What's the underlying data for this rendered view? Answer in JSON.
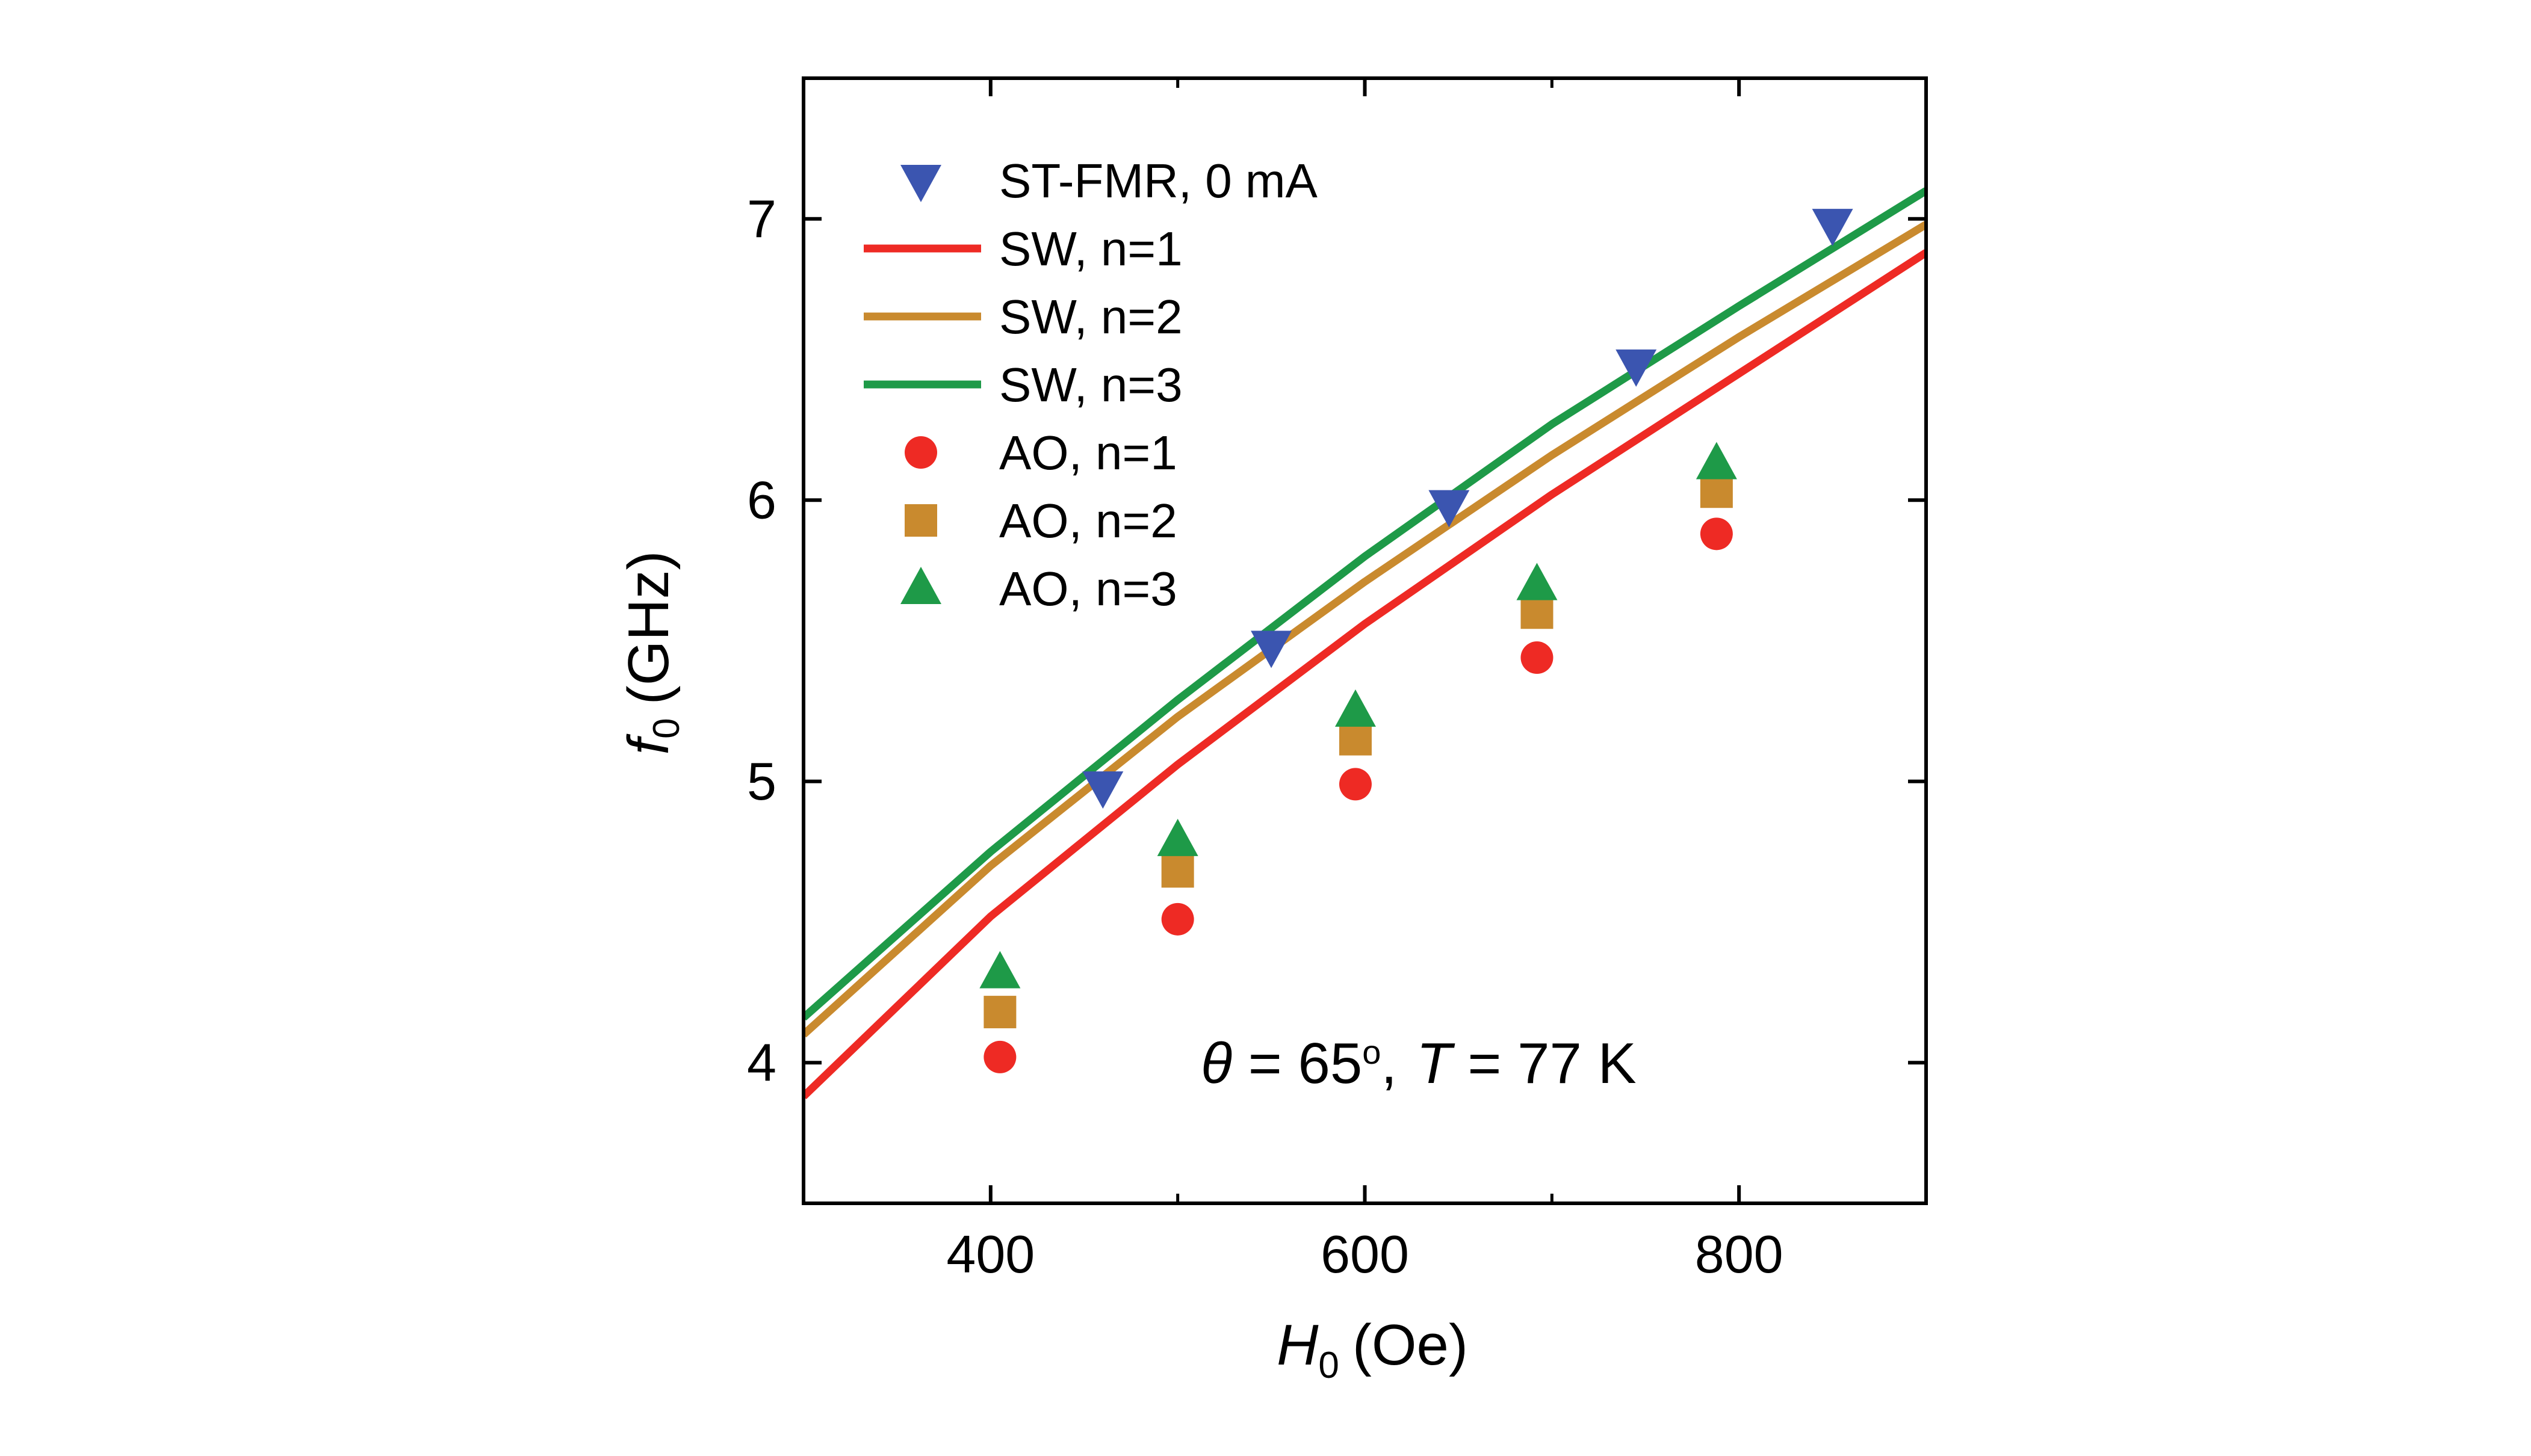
{
  "chart_data": {
    "type": "line",
    "xlabel": {
      "symbol": "H",
      "subscript": "0",
      "unit": "(Oe)"
    },
    "ylabel": {
      "symbol": "f",
      "subscript": "0",
      "unit": "(GHz)"
    },
    "xlim": [
      300,
      900
    ],
    "ylim": [
      3.5,
      7.5
    ],
    "xticks": [
      400,
      600,
      800
    ],
    "xminor": [
      500,
      700
    ],
    "yticks": [
      4,
      5,
      6,
      7
    ],
    "grid": false,
    "legend_position": "top-left",
    "annotation": {
      "theta_symbol": "θ",
      "theta_text": " = 65",
      "degree": "o",
      "sep": ",",
      "t_symbol": "T",
      "t_text": " = 77 K"
    },
    "series": [
      {
        "name": "ST-FMR, 0 mA",
        "kind": "marker",
        "marker": "triangle-down",
        "color": "#3b55b0",
        "x": [
          460,
          550,
          645,
          745,
          850
        ],
        "y": [
          4.98,
          5.48,
          5.98,
          6.48,
          6.98
        ]
      },
      {
        "name": "SW, n=1",
        "kind": "line",
        "color": "#ee2a24",
        "x": [
          300,
          400,
          500,
          600,
          700,
          800,
          900
        ],
        "y": [
          3.88,
          4.52,
          5.06,
          5.56,
          6.02,
          6.45,
          6.88
        ]
      },
      {
        "name": "SW, n=2",
        "kind": "line",
        "color": "#c98a2e",
        "x": [
          300,
          400,
          500,
          600,
          700,
          800,
          900
        ],
        "y": [
          4.1,
          4.7,
          5.23,
          5.71,
          6.16,
          6.58,
          6.98
        ]
      },
      {
        "name": "SW, n=3",
        "kind": "line",
        "color": "#1e9a48",
        "x": [
          300,
          400,
          500,
          600,
          700,
          800,
          900
        ],
        "y": [
          4.16,
          4.75,
          5.29,
          5.8,
          6.27,
          6.69,
          7.1
        ]
      },
      {
        "name": "AO, n=1",
        "kind": "marker",
        "marker": "circle",
        "color": "#ee2a24",
        "x": [
          405,
          500,
          595,
          692,
          788
        ],
        "y": [
          4.02,
          4.51,
          4.99,
          5.44,
          5.88
        ]
      },
      {
        "name": "AO, n=2",
        "kind": "marker",
        "marker": "square",
        "color": "#c98a2e",
        "x": [
          405,
          500,
          595,
          692,
          788
        ],
        "y": [
          4.18,
          4.68,
          5.15,
          5.6,
          6.03
        ]
      },
      {
        "name": "AO, n=3",
        "kind": "marker",
        "marker": "triangle-up",
        "color": "#1e9a48",
        "x": [
          405,
          500,
          595,
          692,
          788
        ],
        "y": [
          4.32,
          4.79,
          5.25,
          5.7,
          6.13
        ]
      }
    ]
  }
}
